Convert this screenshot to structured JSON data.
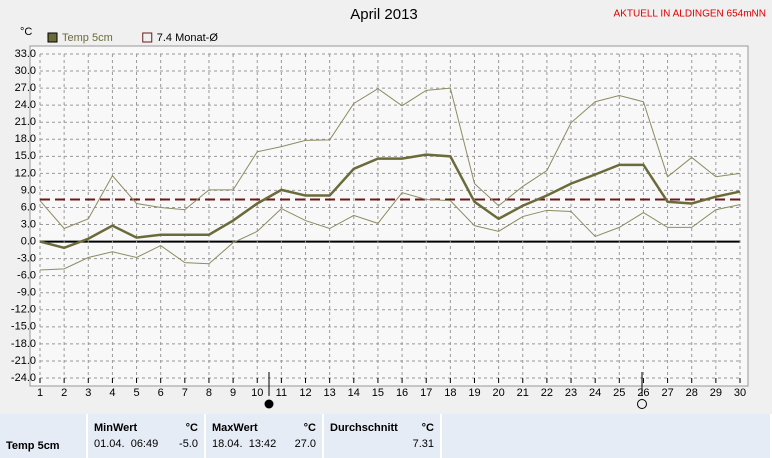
{
  "chart_data": {
    "type": "line",
    "title": "April 2013",
    "subtitle": "AKTUELL IN ALDINGEN 654mNN",
    "y_unit": "°C",
    "categories": [
      "1",
      "2",
      "3",
      "4",
      "5",
      "6",
      "7",
      "8",
      "9",
      "10",
      "11",
      "12",
      "13",
      "14",
      "15",
      "16",
      "17",
      "18",
      "19",
      "20",
      "21",
      "22",
      "23",
      "24",
      "25",
      "26",
      "27",
      "28",
      "29",
      "30"
    ],
    "series": [
      {
        "name": "Temp 5cm",
        "color": "#6b6b3a",
        "width": 2.5,
        "values": [
          0,
          -1.1,
          0.5,
          2.8,
          0.7,
          1.2,
          1.2,
          1.2,
          3.7,
          6.7,
          9.1,
          8.1,
          8.1,
          12.8,
          14.6,
          14.6,
          15.3,
          15.0,
          7.0,
          4.0,
          6.3,
          8.1,
          10.2,
          11.8,
          13.5,
          13.5,
          7.0,
          6.7,
          7.9,
          8.8
        ]
      },
      {
        "color": "#8c8c60",
        "width": 1,
        "values": [
          7.2,
          2.3,
          4.0,
          11.6,
          6.7,
          6.0,
          5.6,
          9.1,
          9.1,
          15.8,
          16.7,
          17.8,
          17.9,
          24.3,
          26.9,
          23.9,
          26.6,
          27.0,
          10.2,
          6.3,
          9.7,
          12.5,
          20.9,
          24.6,
          25.7,
          24.6,
          11.4,
          14.8,
          11.4,
          12.0
        ]
      },
      {
        "color": "#8c8c60",
        "width": 1,
        "values": [
          -5.0,
          -4.8,
          -2.8,
          -1.8,
          -2.8,
          -0.7,
          -3.7,
          -3.9,
          -0.2,
          1.8,
          5.8,
          3.7,
          2.3,
          4.6,
          3.2,
          8.6,
          7.4,
          7.2,
          2.8,
          1.8,
          4.4,
          5.5,
          5.3,
          0.9,
          2.5,
          5.1,
          2.5,
          2.5,
          5.6,
          6.5
        ]
      }
    ],
    "reference": {
      "value": 7.4,
      "label": "7.4 Monat-Ø",
      "color": "#6a1a1a"
    },
    "ylim": [
      -24,
      33
    ],
    "yticks": [
      {
        "value": 33,
        "label": "33.0"
      },
      {
        "value": 30,
        "label": "30.0"
      },
      {
        "value": 27,
        "label": "27.0"
      },
      {
        "value": 24,
        "label": "24.0"
      },
      {
        "value": 21,
        "label": "21.0"
      },
      {
        "value": 18,
        "label": "18.0"
      },
      {
        "value": 15,
        "label": "15.0"
      },
      {
        "value": 12,
        "label": "12.0"
      },
      {
        "value": 9,
        "label": "9.0"
      },
      {
        "value": 6,
        "label": "6.0"
      },
      {
        "value": 3,
        "label": "3.0"
      },
      {
        "value": 0,
        "label": "0.0"
      },
      {
        "value": -3,
        "label": "-3.0"
      },
      {
        "value": -6,
        "label": "-6.0"
      },
      {
        "value": -9,
        "label": "-9.0"
      },
      {
        "value": -12,
        "label": "-12.0"
      },
      {
        "value": -15,
        "label": "-15.0"
      },
      {
        "value": -18,
        "label": "-18.0"
      },
      {
        "value": -21,
        "label": "-21.0"
      },
      {
        "value": -24,
        "label": "-24.0"
      }
    ],
    "grid": true
  },
  "stats": {
    "row_label": "Temp 5cm",
    "columns": [
      {
        "title": "MinWert",
        "unit": "°C",
        "date": "01.04.  06:49",
        "value": "-5.0"
      },
      {
        "title": "MaxWert",
        "unit": "°C",
        "date": "18.04.  13:42",
        "value": "27.0"
      },
      {
        "title": "Durchschnitt",
        "unit": "°C",
        "value": "7.31"
      }
    ]
  }
}
